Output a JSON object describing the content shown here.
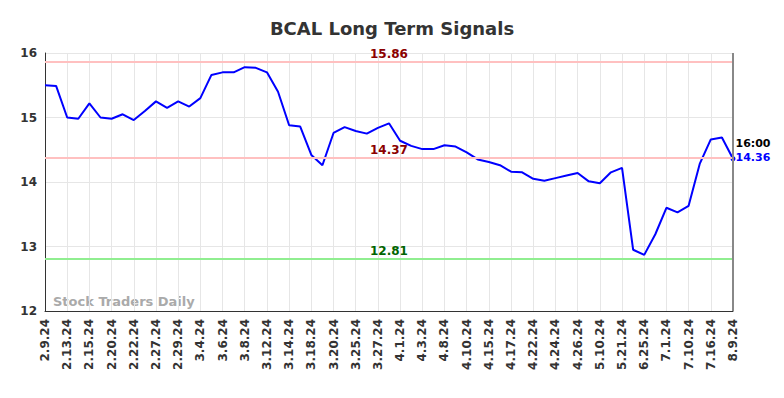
{
  "chart_data": {
    "type": "line",
    "title": "BCAL Long Term Signals",
    "watermark": "Stock Traders Daily",
    "categories": [
      "2.9.24",
      null,
      "2.13.24",
      null,
      "2.15.24",
      null,
      "2.20.24",
      null,
      "2.22.24",
      null,
      "2.27.24",
      null,
      "2.29.24",
      null,
      "3.4.24",
      null,
      "3.6.24",
      null,
      "3.8.24",
      null,
      "3.12.24",
      null,
      "3.14.24",
      null,
      "3.18.24",
      null,
      "3.20.24",
      null,
      "3.25.24",
      null,
      "3.27.24",
      null,
      "4.1.24",
      null,
      "4.3.24",
      null,
      "4.8.24",
      null,
      "4.10.24",
      null,
      "4.15.24",
      null,
      "4.17.24",
      null,
      "4.22.24",
      null,
      "4.24.24",
      null,
      "4.26.24",
      null,
      "5.10.24",
      null,
      "5.21.24",
      null,
      "6.25.24",
      null,
      "7.1.24",
      null,
      "7.10.24",
      null,
      "7.16.24",
      null,
      "8.9.24"
    ],
    "values": [
      15.5,
      15.49,
      15.0,
      14.98,
      15.22,
      15.0,
      14.98,
      15.05,
      14.96,
      15.1,
      15.25,
      15.15,
      15.25,
      15.17,
      15.3,
      15.66,
      15.7,
      15.7,
      15.78,
      15.77,
      15.7,
      15.4,
      14.88,
      14.86,
      14.42,
      14.26,
      14.76,
      14.85,
      14.79,
      14.75,
      14.84,
      14.91,
      14.64,
      14.56,
      14.51,
      14.51,
      14.57,
      14.55,
      14.46,
      14.35,
      14.31,
      14.26,
      14.16,
      14.15,
      14.05,
      14.02,
      14.06,
      14.1,
      14.14,
      14.01,
      13.98,
      14.15,
      14.22,
      12.95,
      12.87,
      13.19,
      13.6,
      13.53,
      13.63,
      14.28,
      14.66,
      14.69,
      14.36
    ],
    "color": "#0000ff",
    "ylim": [
      12,
      16
    ],
    "yticks": [
      12,
      13,
      14,
      15,
      16
    ],
    "grid": true,
    "signals": [
      {
        "value": 15.86,
        "color": "#ffc0c0",
        "label_color": "#8b0000"
      },
      {
        "value": 14.37,
        "color": "#ffc0c0",
        "label_color": "#8b0000"
      },
      {
        "value": 12.81,
        "color": "#90ee90",
        "label_color": "#006400"
      }
    ],
    "last_point": {
      "time": "16:00",
      "value_label": "14.36"
    }
  }
}
